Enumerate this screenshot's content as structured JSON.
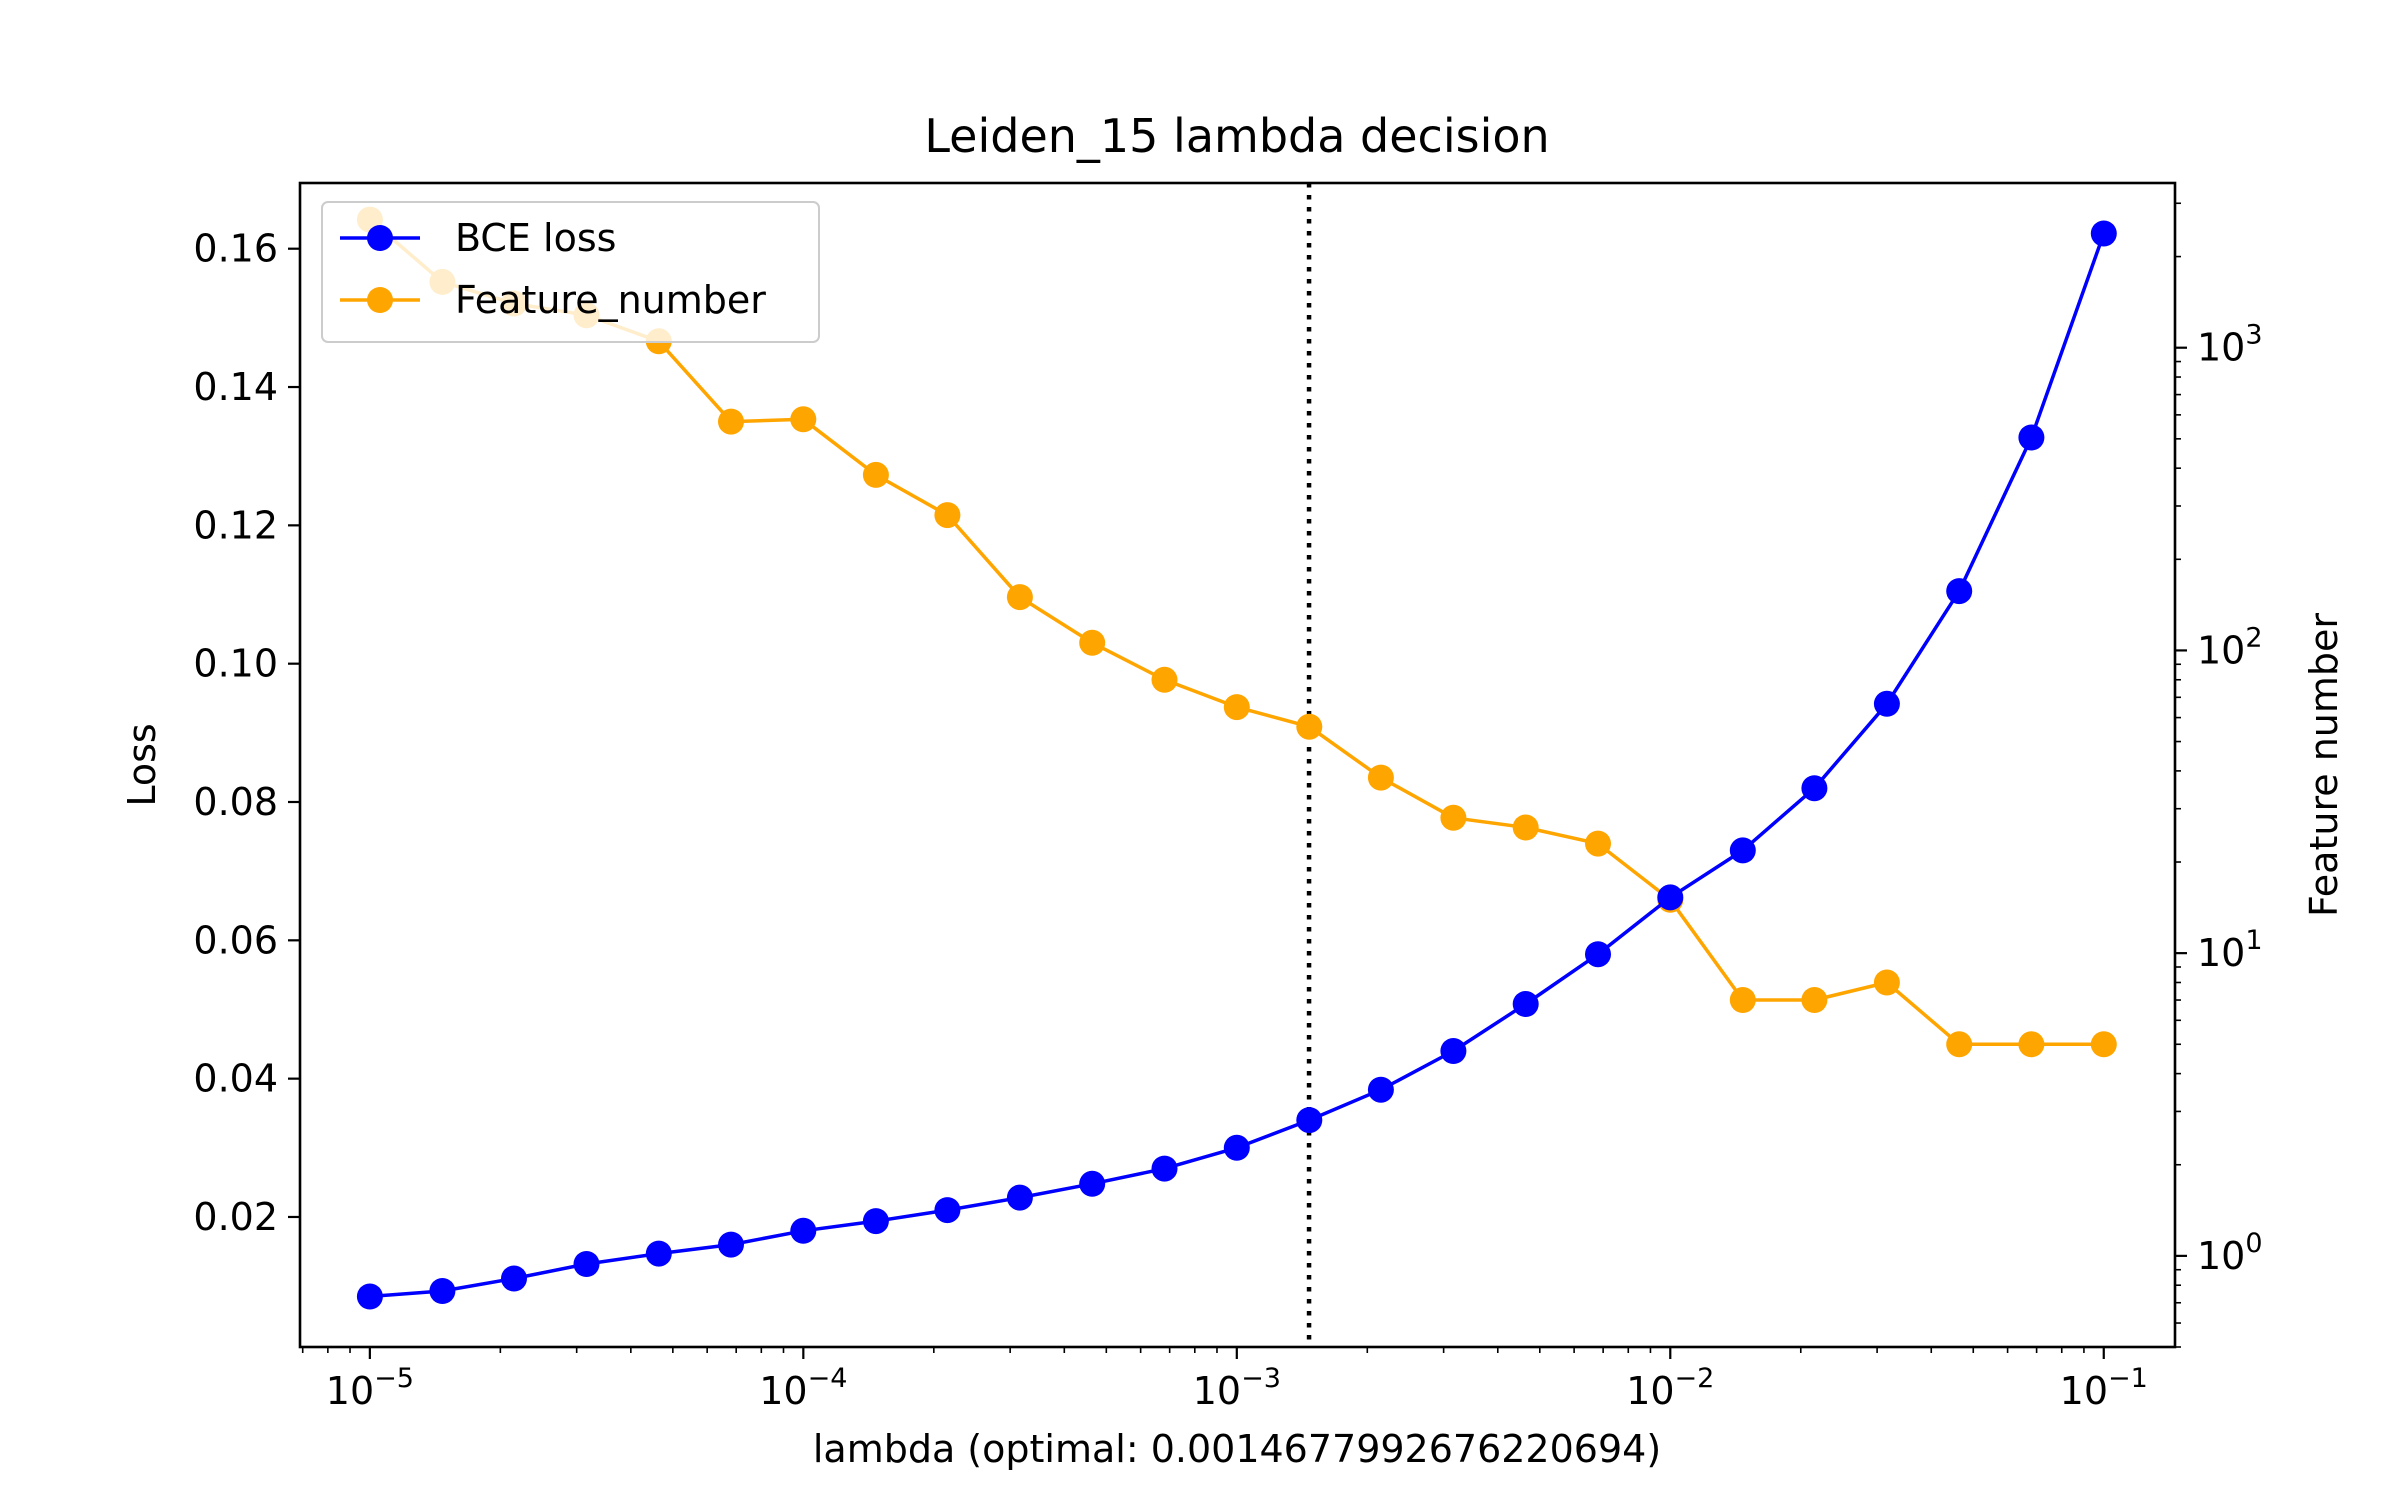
{
  "colors": {
    "loss": "#0000ff",
    "features": "#ffa500",
    "optimal_line": "#000000",
    "axes": "#000000",
    "background": "#ffffff"
  },
  "chart_data": {
    "type": "line",
    "title": "Leiden_15 lambda decision",
    "xlabel": "lambda (optimal: 0.001467799267622069​4)",
    "ylabel": "Loss",
    "y2label": "Feature number",
    "x_scale": "log",
    "y2_scale": "log",
    "xlim": [
      6.9e-06,
      0.146
    ],
    "ylim": [
      0.0012,
      0.1695
    ],
    "y2lim": [
      0.5,
      3500
    ],
    "grid": false,
    "legend_position": "upper-left",
    "x_ticks": [
      {
        "value": 1e-05,
        "base": "10",
        "exp": "−5"
      },
      {
        "value": 0.0001,
        "base": "10",
        "exp": "−4"
      },
      {
        "value": 0.001,
        "base": "10",
        "exp": "−3"
      },
      {
        "value": 0.01,
        "base": "10",
        "exp": "−2"
      },
      {
        "value": 0.1,
        "base": "10",
        "exp": "−1"
      }
    ],
    "y_ticks": [
      {
        "value": 0.02,
        "label": "0.02"
      },
      {
        "value": 0.04,
        "label": "0.04"
      },
      {
        "value": 0.06,
        "label": "0.06"
      },
      {
        "value": 0.08,
        "label": "0.08"
      },
      {
        "value": 0.1,
        "label": "0.10"
      },
      {
        "value": 0.12,
        "label": "0.12"
      },
      {
        "value": 0.14,
        "label": "0.14"
      },
      {
        "value": 0.16,
        "label": "0.16"
      }
    ],
    "y2_ticks": [
      {
        "value": 1,
        "base": "10",
        "exp": "0"
      },
      {
        "value": 10,
        "base": "10",
        "exp": "1"
      },
      {
        "value": 100,
        "base": "10",
        "exp": "2"
      },
      {
        "value": 1000,
        "base": "10",
        "exp": "3"
      }
    ],
    "optimal_lambda": 0.0014677992676220694,
    "x": [
      1e-05,
      1.47e-05,
      2.15e-05,
      3.16e-05,
      4.64e-05,
      6.81e-05,
      0.0001,
      0.000147,
      0.000215,
      0.000316,
      0.000464,
      0.000681,
      0.001,
      0.00147,
      0.00215,
      0.00316,
      0.00464,
      0.00681,
      0.01,
      0.0147,
      0.0215,
      0.0316,
      0.0464,
      0.0681,
      0.1
    ],
    "series": [
      {
        "name": "BCE loss",
        "axis": "left",
        "color": "#0000ff",
        "values": [
          0.0085,
          0.0093,
          0.0111,
          0.0132,
          0.0147,
          0.016,
          0.018,
          0.0194,
          0.021,
          0.0228,
          0.0248,
          0.027,
          0.03,
          0.034,
          0.0384,
          0.044,
          0.0508,
          0.058,
          0.0662,
          0.073,
          0.082,
          0.0942,
          0.1105,
          0.1327,
          0.1622
        ]
      },
      {
        "name": "Feature_number",
        "axis": "right",
        "color": "#ffa500",
        "values": [
          2650,
          1650,
          1400,
          1280,
          1050,
          570,
          580,
          380,
          280,
          150,
          106,
          80,
          65,
          56,
          38,
          28,
          26,
          23,
          15,
          7,
          7,
          8,
          5,
          5,
          5
        ]
      }
    ]
  }
}
